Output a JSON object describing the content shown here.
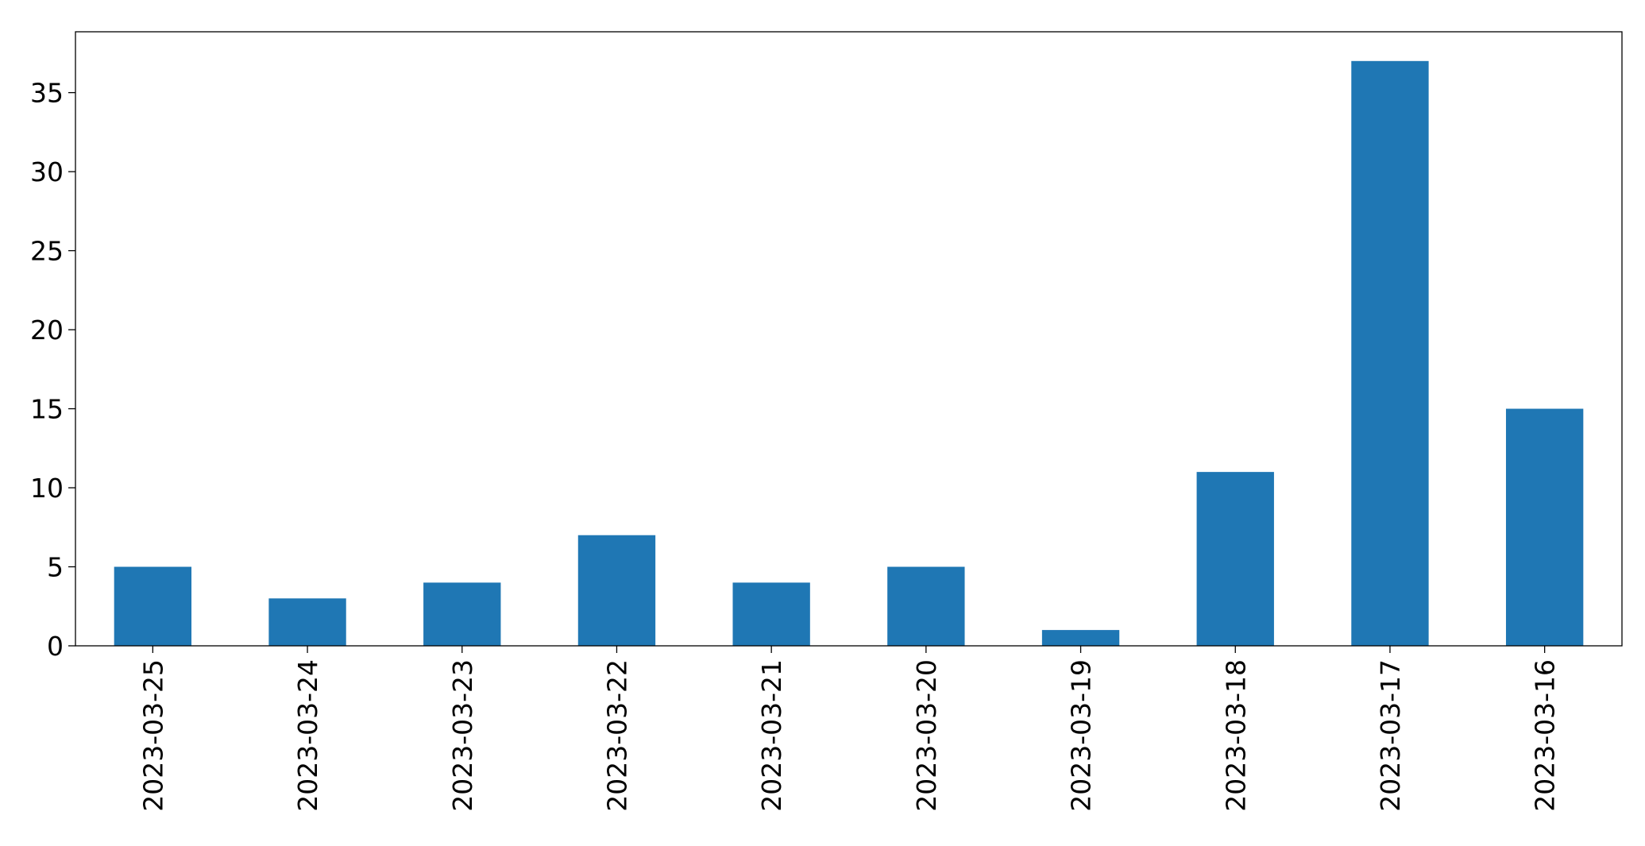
{
  "chart_data": {
    "type": "bar",
    "title": "",
    "xlabel": "",
    "ylabel": "",
    "categories": [
      "2023-03-25",
      "2023-03-24",
      "2023-03-23",
      "2023-03-22",
      "2023-03-21",
      "2023-03-20",
      "2023-03-19",
      "2023-03-18",
      "2023-03-17",
      "2023-03-16"
    ],
    "series": [
      {
        "values": [
          5,
          3,
          4,
          7,
          4,
          5,
          1,
          11,
          37,
          15
        ],
        "color": "#1f77b4"
      }
    ],
    "ylim": [
      0,
      38.85
    ],
    "yticks": [
      0,
      5,
      10,
      15,
      20,
      25,
      30,
      35
    ],
    "grid": false,
    "legend": "none",
    "x_tick_rotation": "vertical"
  }
}
